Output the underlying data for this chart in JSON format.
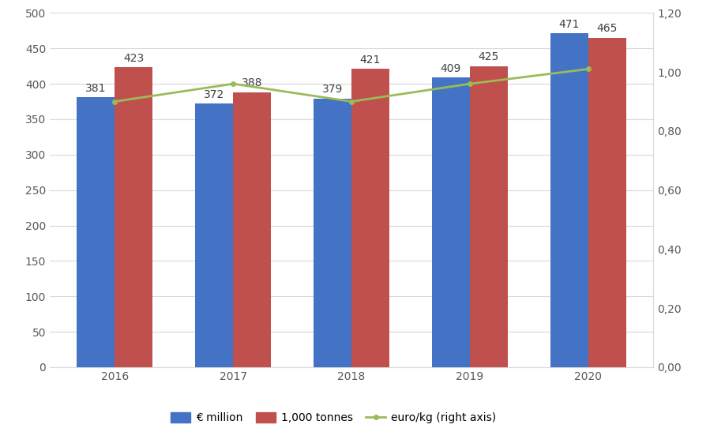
{
  "years": [
    2016,
    2017,
    2018,
    2019,
    2020
  ],
  "euro_million": [
    381,
    372,
    379,
    409,
    471
  ],
  "tonnes_1000": [
    423,
    388,
    421,
    425,
    465
  ],
  "euro_per_kg": [
    0.9,
    0.96,
    0.9,
    0.96,
    1.01
  ],
  "bar_color_blue": "#4472C4",
  "bar_color_red": "#C0504D",
  "line_color": "#9BBB59",
  "background_color": "#FFFFFF",
  "ylim_left": [
    0,
    500
  ],
  "ylim_right": [
    0.0,
    1.2
  ],
  "yticks_left": [
    0,
    50,
    100,
    150,
    200,
    250,
    300,
    350,
    400,
    450,
    500
  ],
  "ytick_labels_right": [
    "0,00",
    "0,20",
    "0,40",
    "0,60",
    "0,80",
    "1,00",
    "1,20"
  ],
  "legend_labels": [
    "€ million",
    "1,000 tonnes",
    "euro/kg (right axis)"
  ],
  "bar_width": 0.32,
  "tick_fontsize": 10,
  "label_fontsize": 10
}
